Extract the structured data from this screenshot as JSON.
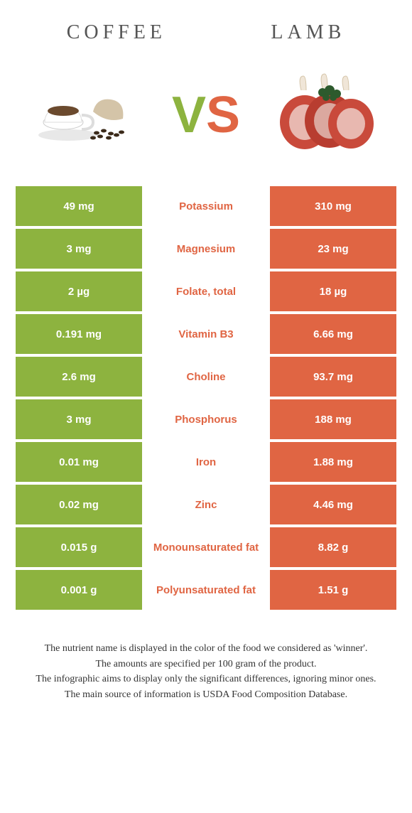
{
  "header": {
    "left": "COFFEE",
    "right": "LAMB"
  },
  "vs": {
    "v": "V",
    "s": "S"
  },
  "colors": {
    "green": "#8db33f",
    "orange": "#e06543",
    "green_text": "#8db33f",
    "orange_text": "#e06543"
  },
  "rows": [
    {
      "left": "49 mg",
      "label": "Potassium",
      "right": "310 mg",
      "winner": "right"
    },
    {
      "left": "3 mg",
      "label": "Magnesium",
      "right": "23 mg",
      "winner": "right"
    },
    {
      "left": "2 µg",
      "label": "Folate, total",
      "right": "18 µg",
      "winner": "right"
    },
    {
      "left": "0.191 mg",
      "label": "Vitamin B3",
      "right": "6.66 mg",
      "winner": "right"
    },
    {
      "left": "2.6 mg",
      "label": "Choline",
      "right": "93.7 mg",
      "winner": "right"
    },
    {
      "left": "3 mg",
      "label": "Phosphorus",
      "right": "188 mg",
      "winner": "right"
    },
    {
      "left": "0.01 mg",
      "label": "Iron",
      "right": "1.88 mg",
      "winner": "right"
    },
    {
      "left": "0.02 mg",
      "label": "Zinc",
      "right": "4.46 mg",
      "winner": "right"
    },
    {
      "left": "0.015 g",
      "label": "Monounsaturated fat",
      "right": "8.82 g",
      "winner": "right"
    },
    {
      "left": "0.001 g",
      "label": "Polyunsaturated fat",
      "right": "1.51 g",
      "winner": "right"
    }
  ],
  "footer": {
    "l1": "The nutrient name is displayed in the color of the food we considered as 'winner'.",
    "l2": "The amounts are specified per 100 gram of the product.",
    "l3": "The infographic aims to display only the significant differences, ignoring minor ones.",
    "l4": "The main source of information is USDA Food Composition Database."
  }
}
